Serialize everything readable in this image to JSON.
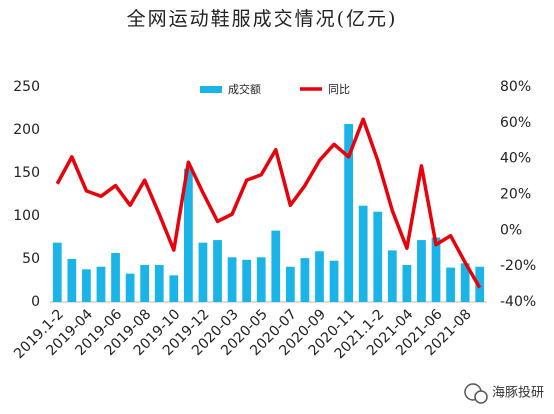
{
  "chart_data": {
    "type": "bar_line",
    "title": "全网运动鞋服成交情况(亿元)",
    "categories": [
      "2019.1-2",
      null,
      "2019-04",
      null,
      "2019-06",
      null,
      "2019-08",
      null,
      "2019-10",
      null,
      "2019-12",
      null,
      "2020-03",
      null,
      "2020-05",
      null,
      "2020-07",
      null,
      "2020-09",
      null,
      "2020-11",
      null,
      "2021.1-2",
      null,
      "2021-04",
      null,
      "2021-06",
      null,
      "2021-08",
      null
    ],
    "series": [
      {
        "name": "成交额",
        "color": "#1ab4e6",
        "type": "bar",
        "values": [
          69,
          50,
          38,
          41,
          57,
          33,
          43,
          43,
          31,
          155,
          69,
          72,
          52,
          49,
          52,
          83,
          41,
          51,
          59,
          48,
          207,
          112,
          105,
          60,
          43,
          72,
          75,
          40,
          45,
          41
        ]
      },
      {
        "name": "同比",
        "color": "#e8000b",
        "type": "line",
        "axis": "y2",
        "values": [
          26,
          41,
          22,
          19,
          25,
          14,
          28,
          9,
          -11,
          38,
          21,
          5,
          9,
          28,
          31,
          45,
          14,
          25,
          39,
          48,
          41,
          62,
          39,
          11,
          -10,
          36,
          -8,
          -3,
          -18,
          -32
        ]
      }
    ],
    "ylim": [
      0,
      250
    ],
    "yticks": [
      0,
      50,
      100,
      150,
      200,
      250
    ],
    "y2lim": [
      -40,
      80
    ],
    "y2ticks": [
      {
        "value": -40,
        "label": "-40%"
      },
      {
        "value": -20,
        "label": "-20%"
      },
      {
        "value": 0,
        "label": "0%"
      },
      {
        "value": 20,
        "label": "20%"
      },
      {
        "value": 40,
        "label": "40%"
      },
      {
        "value": 60,
        "label": "60%"
      },
      {
        "value": 80,
        "label": "80%"
      }
    ],
    "legend": "top",
    "watermark": "海豚投研"
  }
}
